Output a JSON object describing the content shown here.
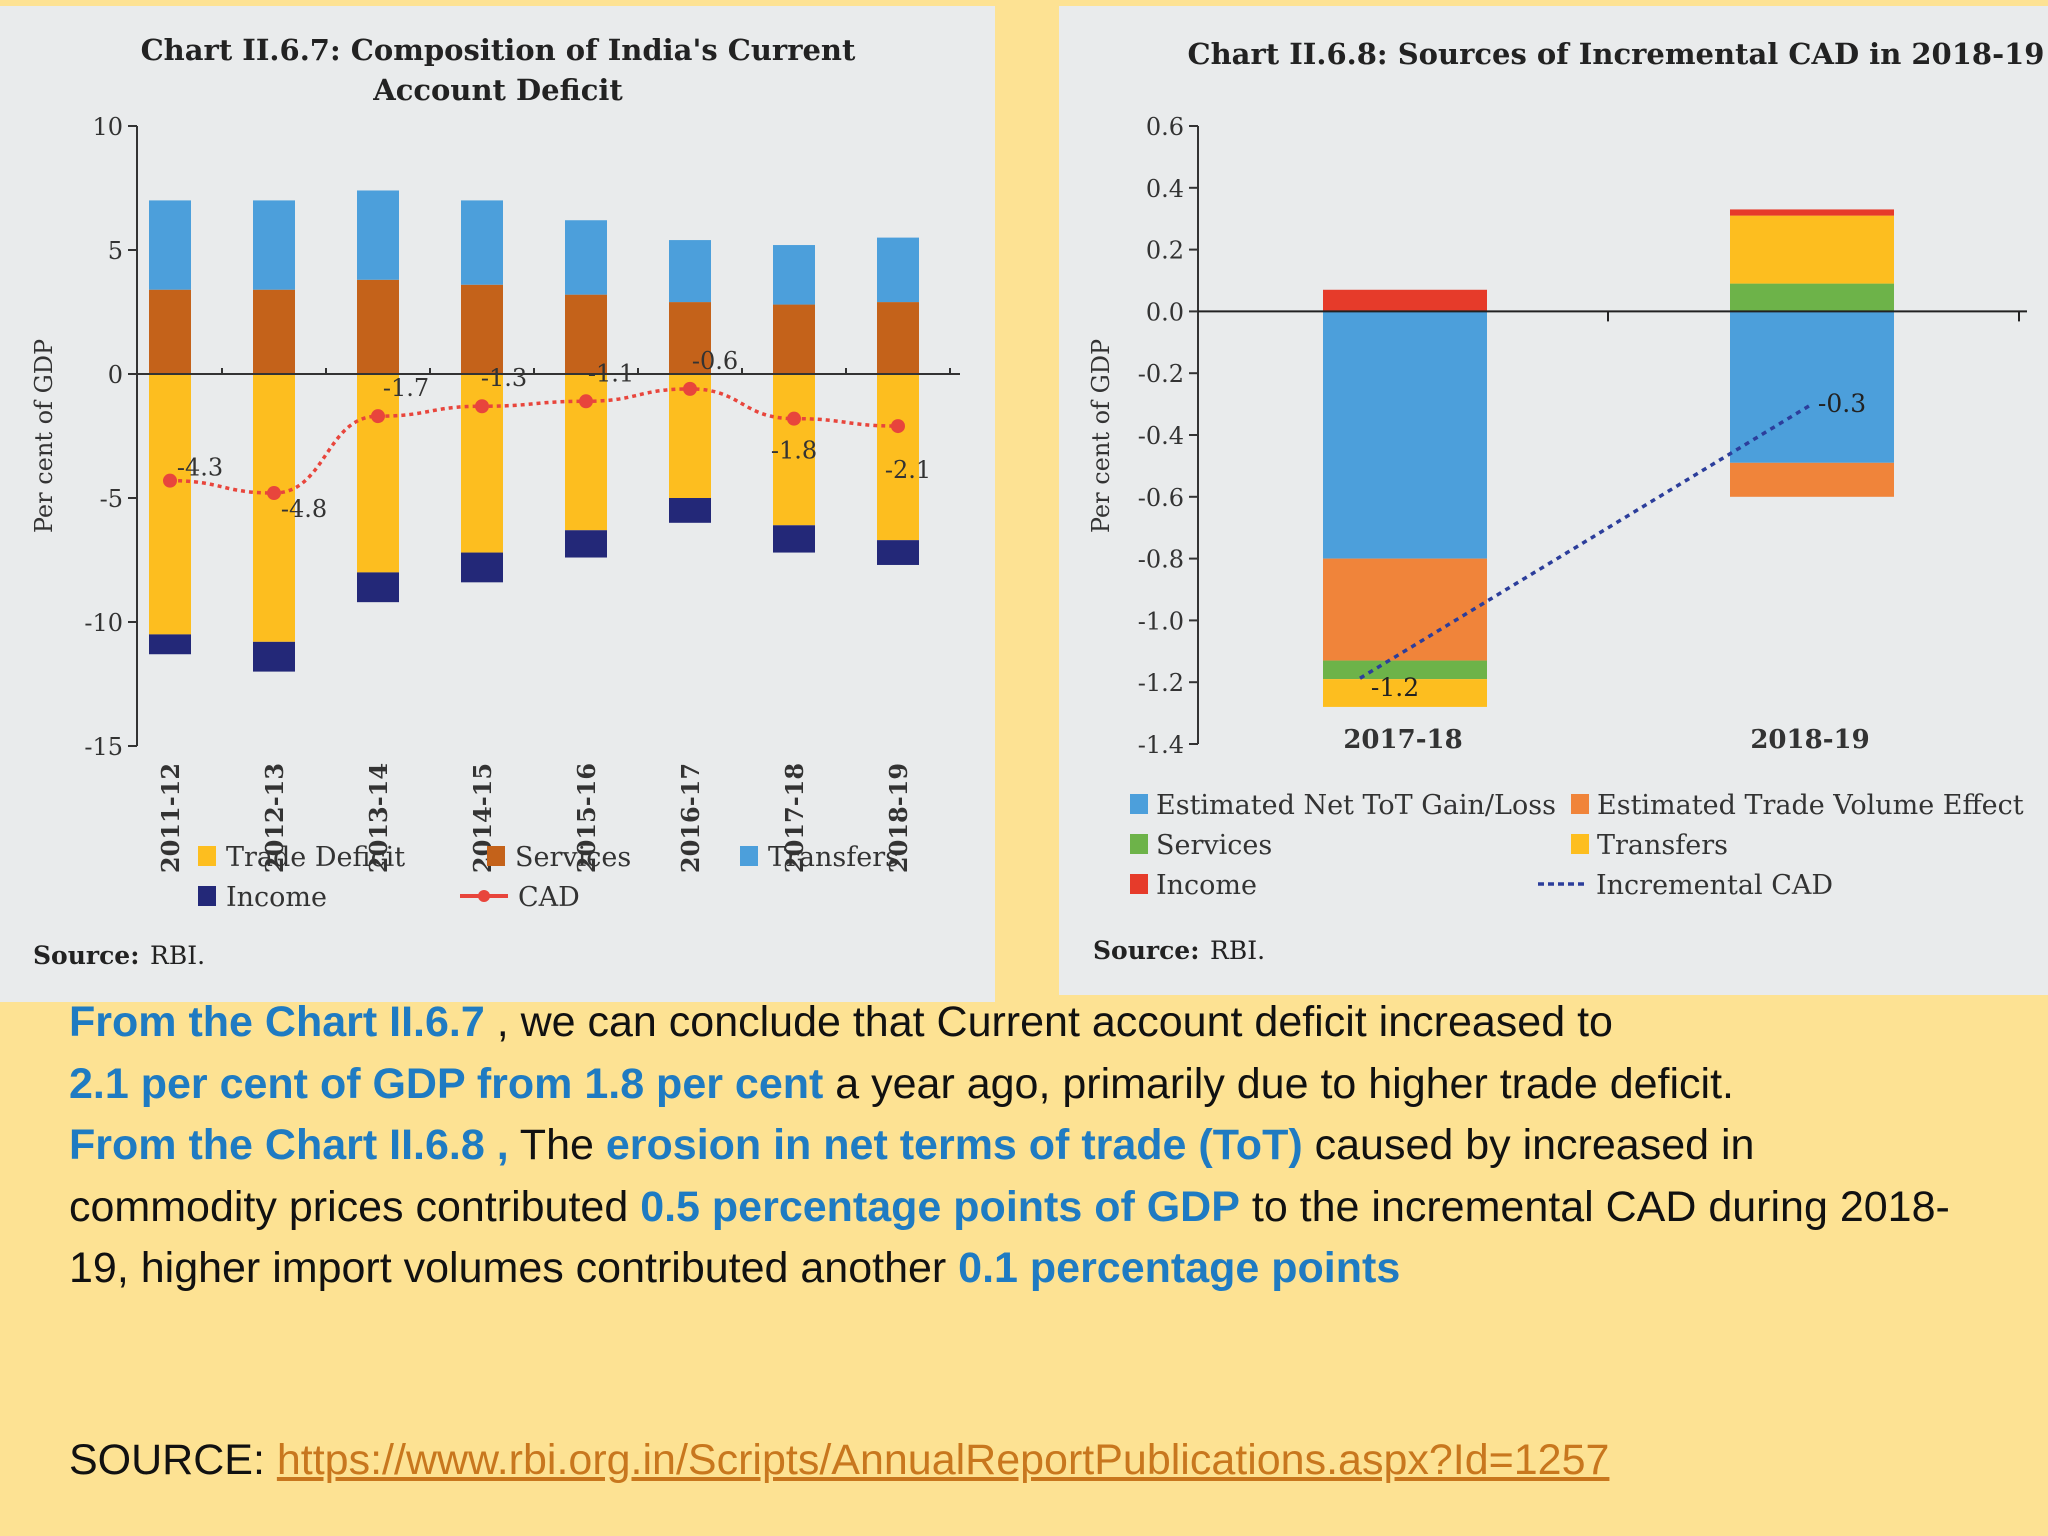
{
  "chart_data": [
    {
      "type": "bar",
      "stacked": true,
      "title_lines": [
        "Chart II.6.7: Composition of India's Current",
        "Account Deficit"
      ],
      "ylabel": "Per cent of GDP",
      "ylim": [
        -15,
        10
      ],
      "yticks": [
        10,
        5,
        0,
        -5,
        -10,
        -15
      ],
      "categories": [
        "2011-12",
        "2012-13",
        "2013-14",
        "2014-15",
        "2015-16",
        "2016-17",
        "2017-18",
        "2018-19"
      ],
      "series": [
        {
          "name": "Trade Deficit",
          "color": "#FDBE1F",
          "values": [
            -10.5,
            -10.8,
            -8.0,
            -7.2,
            -6.3,
            -5.0,
            -6.1,
            -6.7
          ]
        },
        {
          "name": "Services",
          "color": "#C4621A",
          "values": [
            3.4,
            3.4,
            3.8,
            3.6,
            3.2,
            2.9,
            2.8,
            2.9
          ]
        },
        {
          "name": "Transfers",
          "color": "#4C9FDB",
          "values": [
            3.6,
            3.6,
            3.6,
            3.4,
            3.0,
            2.5,
            2.4,
            2.6
          ]
        },
        {
          "name": "Income",
          "color": "#232878",
          "values": [
            -0.8,
            -1.2,
            -1.2,
            -1.2,
            -1.1,
            -1.0,
            -1.1,
            -1.0
          ]
        }
      ],
      "line": {
        "name": "CAD",
        "color": "#E8453C",
        "values": [
          -4.3,
          -4.8,
          -1.7,
          -1.3,
          -1.1,
          -0.6,
          -1.8,
          -2.1
        ],
        "labels": [
          "-4.3",
          "-4.8",
          "-1.7",
          "-1.3",
          "-1.1",
          "-0.6",
          "-1.8",
          "-2.1"
        ]
      },
      "legend_position": "bottom",
      "source_label": "Source:",
      "source_value": "RBI."
    },
    {
      "type": "bar",
      "stacked": true,
      "title": "Chart II.6.8: Sources of Incremental CAD in  2018-19",
      "ylabel": "Per cent of GDP",
      "ylim": [
        -1.4,
        0.6
      ],
      "yticks": [
        "0.6",
        "0.4",
        "0.2",
        "0.0",
        "-0.2",
        "-0.4",
        "-0.6",
        "-0.8",
        "-1.0",
        "-1.2",
        "-1.4"
      ],
      "categories": [
        "2017-18",
        "2018-19"
      ],
      "series": [
        {
          "name": "Estimated Net ToT Gain/Loss",
          "color": "#4C9FDB",
          "values": [
            -0.8,
            -0.49
          ]
        },
        {
          "name": "Estimated Trade Volume Effect",
          "color": "#F0843A",
          "values": [
            -0.33,
            -0.11
          ]
        },
        {
          "name": "Services",
          "color": "#6DB349",
          "values": [
            -0.06,
            0.09
          ]
        },
        {
          "name": "Transfers",
          "color": "#FDBE1F",
          "values": [
            -0.09,
            0.22
          ]
        },
        {
          "name": "Income",
          "color": "#E63B2A",
          "values": [
            0.07,
            0.02
          ]
        }
      ],
      "line": {
        "name": "Incremental CAD",
        "color": "#2C3E9B",
        "values": [
          -1.2,
          -0.3
        ],
        "labels": [
          "-1.2",
          "-0.3"
        ]
      },
      "legend_position": "bottom",
      "source_label": "Source:",
      "source_value": "RBI."
    }
  ],
  "caption": {
    "p1_a": "From the Chart II.6.7",
    "p1_b": " , we can conclude that Current account deficit increased to ",
    "p1_c": "2.1 per cent of GDP from 1.8 per cent",
    "p1_d": " a year ago, primarily due to higher trade deficit.",
    "p2_a": "From the Chart II.6.8 ,",
    "p2_b": "  The ",
    "p2_c": "erosion in net terms of trade (ToT)",
    "p2_d": " caused by increased in commodity prices contributed ",
    "p2_e": "0.5 percentage points of GDP",
    "p2_f": " to the incremental CAD during 2018-19, higher import volumes contributed another ",
    "p2_g": "0.1 percentage points",
    "source_label": "SOURCE: ",
    "source_link": "https://www.rbi.org.in/Scripts/AnnualReportPublications.aspx?Id=1257"
  }
}
